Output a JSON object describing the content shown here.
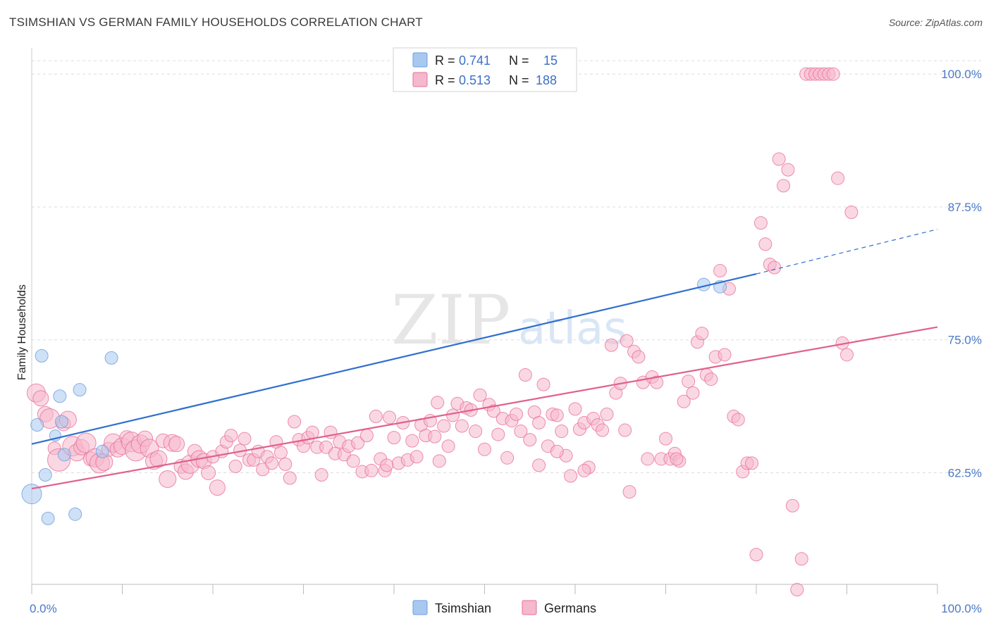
{
  "title": "TSIMSHIAN VS GERMAN FAMILY HOUSEHOLDS CORRELATION CHART",
  "source": "Source: ZipAtlas.com",
  "watermark": {
    "zip": "ZIP",
    "atlas": "atlas"
  },
  "legend": {
    "rows": [
      {
        "r_label": "R =",
        "r_value": "0.741",
        "n_label": "N =",
        "n_value": "15",
        "color": "#a8c8f0"
      },
      {
        "r_label": "R =",
        "r_value": "0.513",
        "n_label": "N =",
        "n_value": "188",
        "color": "#f5b8cc"
      }
    ]
  },
  "chart_data": {
    "type": "scatter",
    "title": "TSIMSHIAN VS GERMAN FAMILY HOUSEHOLDS CORRELATION CHART",
    "xlabel": "",
    "ylabel": "Family Households",
    "xlim": [
      0,
      100
    ],
    "ylim": [
      52,
      102
    ],
    "x_tick_labels": [
      "0.0%",
      "100.0%"
    ],
    "y_ticks": [
      62.5,
      75.0,
      87.5,
      100.0
    ],
    "y_tick_labels": [
      "62.5%",
      "75.0%",
      "87.5%",
      "100.0%"
    ],
    "series": [
      {
        "name": "Tsimshian",
        "color": "#6b9ee0",
        "fill": "#a8c8f0",
        "trend": {
          "x0": 0,
          "y0": 65.2,
          "x1": 80,
          "y1": 81.2,
          "dash_to_x": 100,
          "dash_to_y": 85.4
        },
        "points": [
          [
            0,
            60.5,
            14
          ],
          [
            0.6,
            67.0,
            9
          ],
          [
            1.1,
            73.5,
            9
          ],
          [
            1.5,
            62.3,
            9
          ],
          [
            1.8,
            58.2,
            9
          ],
          [
            2.6,
            66.0,
            8
          ],
          [
            3.1,
            69.7,
            9
          ],
          [
            3.3,
            67.3,
            9
          ],
          [
            3.6,
            64.2,
            9
          ],
          [
            4.8,
            58.6,
            9
          ],
          [
            5.3,
            70.3,
            9
          ],
          [
            8.8,
            73.3,
            9
          ],
          [
            74.2,
            80.2,
            9
          ],
          [
            76.0,
            80.0,
            9
          ],
          [
            7.8,
            64.5,
            9
          ]
        ]
      },
      {
        "name": "Germans",
        "color": "#e8709a",
        "fill": "#f5b8cc",
        "trend": {
          "x0": 0,
          "y0": 61.0,
          "x1": 100,
          "y1": 76.2
        },
        "points": [
          [
            0.5,
            70.0,
            13
          ],
          [
            1.0,
            69.5,
            11
          ],
          [
            1.5,
            68.0,
            11
          ],
          [
            2.0,
            67.6,
            14
          ],
          [
            2.5,
            64.8,
            9
          ],
          [
            3.0,
            63.7,
            16
          ],
          [
            3.5,
            67.1,
            10
          ],
          [
            4.0,
            67.5,
            12
          ],
          [
            4.5,
            65.0,
            14
          ],
          [
            5.0,
            64.4,
            12
          ],
          [
            5.5,
            64.9,
            11
          ],
          [
            6.0,
            65.3,
            14
          ],
          [
            6.5,
            63.8,
            10
          ],
          [
            7.0,
            63.9,
            13
          ],
          [
            7.5,
            63.4,
            14
          ],
          [
            8.0,
            63.5,
            12
          ],
          [
            8.5,
            64.7,
            10
          ],
          [
            9.0,
            65.3,
            13
          ],
          [
            9.5,
            64.7,
            11
          ],
          [
            10.0,
            65.0,
            12
          ],
          [
            10.5,
            65.8,
            10
          ],
          [
            11.0,
            65.4,
            14
          ],
          [
            11.5,
            64.6,
            15
          ],
          [
            12.0,
            65.2,
            13
          ],
          [
            12.5,
            65.7,
            11
          ],
          [
            13.0,
            64.8,
            13
          ],
          [
            13.5,
            63.6,
            12
          ],
          [
            14.0,
            63.8,
            12
          ],
          [
            14.5,
            65.5,
            10
          ],
          [
            15.0,
            61.9,
            12
          ],
          [
            15.5,
            65.3,
            12
          ],
          [
            16.0,
            65.2,
            11
          ],
          [
            16.5,
            63.1,
            10
          ],
          [
            17.0,
            62.6,
            11
          ],
          [
            17.5,
            63.3,
            13
          ],
          [
            18.0,
            64.5,
            10
          ],
          [
            18.5,
            63.8,
            12
          ],
          [
            19.0,
            63.6,
            11
          ],
          [
            19.5,
            62.5,
            10
          ],
          [
            20.0,
            64.0,
            9
          ],
          [
            20.5,
            61.1,
            11
          ],
          [
            21.0,
            64.5,
            9
          ],
          [
            21.5,
            65.4,
            9
          ],
          [
            22.0,
            66.0,
            9
          ],
          [
            22.5,
            63.1,
            9
          ],
          [
            23.0,
            64.6,
            9
          ],
          [
            23.5,
            65.7,
            9
          ],
          [
            24.0,
            63.7,
            9
          ],
          [
            24.5,
            63.7,
            9
          ],
          [
            25.0,
            64.5,
            9
          ],
          [
            25.5,
            62.8,
            9
          ],
          [
            26.0,
            64.0,
            9
          ],
          [
            26.5,
            63.4,
            9
          ],
          [
            27.0,
            65.4,
            9
          ],
          [
            27.5,
            64.4,
            9
          ],
          [
            28.0,
            63.3,
            9
          ],
          [
            28.5,
            62.0,
            9
          ],
          [
            29.0,
            67.3,
            9
          ],
          [
            29.5,
            65.6,
            9
          ],
          [
            30.0,
            65.0,
            9
          ],
          [
            30.5,
            65.8,
            9
          ],
          [
            31.0,
            66.3,
            9
          ],
          [
            31.5,
            64.9,
            9
          ],
          [
            32.0,
            62.3,
            9
          ],
          [
            32.5,
            64.9,
            9
          ],
          [
            33.0,
            66.3,
            9
          ],
          [
            33.5,
            64.3,
            9
          ],
          [
            34.0,
            65.4,
            9
          ],
          [
            34.5,
            64.2,
            9
          ],
          [
            35.0,
            65.0,
            9
          ],
          [
            35.5,
            63.6,
            9
          ],
          [
            36.0,
            65.3,
            9
          ],
          [
            36.5,
            62.6,
            9
          ],
          [
            37.0,
            66.0,
            9
          ],
          [
            37.5,
            62.7,
            9
          ],
          [
            38.0,
            67.8,
            9
          ],
          [
            38.5,
            63.8,
            9
          ],
          [
            39.0,
            62.7,
            9
          ],
          [
            39.5,
            67.7,
            9
          ],
          [
            40.0,
            65.8,
            9
          ],
          [
            40.5,
            63.4,
            9
          ],
          [
            41.0,
            67.2,
            9
          ],
          [
            41.5,
            63.7,
            9
          ],
          [
            42.0,
            65.5,
            9
          ],
          [
            42.5,
            64.0,
            9
          ],
          [
            43.0,
            67.0,
            9
          ],
          [
            43.5,
            66.0,
            9
          ],
          [
            44.0,
            67.4,
            9
          ],
          [
            44.5,
            65.9,
            9
          ],
          [
            45.0,
            63.6,
            9
          ],
          [
            45.5,
            66.9,
            9
          ],
          [
            46.0,
            65.0,
            9
          ],
          [
            46.5,
            67.9,
            9
          ],
          [
            47.0,
            69.0,
            9
          ],
          [
            47.5,
            66.9,
            9
          ],
          [
            48.0,
            68.6,
            9
          ],
          [
            48.5,
            68.4,
            9
          ],
          [
            49.0,
            66.4,
            9
          ],
          [
            49.5,
            69.8,
            9
          ],
          [
            50.0,
            64.7,
            9
          ],
          [
            50.5,
            68.9,
            9
          ],
          [
            51.0,
            68.3,
            9
          ],
          [
            51.5,
            66.1,
            9
          ],
          [
            52.0,
            67.6,
            9
          ],
          [
            52.5,
            63.9,
            9
          ],
          [
            53.0,
            67.4,
            9
          ],
          [
            53.5,
            68.0,
            9
          ],
          [
            54.0,
            66.4,
            9
          ],
          [
            54.5,
            71.7,
            9
          ],
          [
            55.0,
            65.6,
            9
          ],
          [
            55.5,
            68.2,
            9
          ],
          [
            56.0,
            67.2,
            9
          ],
          [
            56.5,
            70.8,
            9
          ],
          [
            57.0,
            65.0,
            9
          ],
          [
            57.5,
            68.0,
            9
          ],
          [
            58.0,
            67.9,
            9
          ],
          [
            58.5,
            66.4,
            9
          ],
          [
            59.0,
            64.1,
            9
          ],
          [
            59.5,
            62.2,
            9
          ],
          [
            60.0,
            68.5,
            9
          ],
          [
            60.5,
            66.6,
            9
          ],
          [
            61.0,
            67.2,
            9
          ],
          [
            61.5,
            63.0,
            9
          ],
          [
            62.0,
            67.6,
            9
          ],
          [
            62.5,
            67.0,
            9
          ],
          [
            63.0,
            66.5,
            9
          ],
          [
            63.5,
            68.0,
            9
          ],
          [
            64.0,
            74.5,
            9
          ],
          [
            64.5,
            70.0,
            9
          ],
          [
            65.0,
            70.9,
            9
          ],
          [
            65.5,
            66.5,
            9
          ],
          [
            66.0,
            60.7,
            9
          ],
          [
            66.5,
            73.9,
            9
          ],
          [
            67.0,
            73.4,
            9
          ],
          [
            67.5,
            71.0,
            9
          ],
          [
            68.0,
            63.8,
            9
          ],
          [
            68.5,
            71.5,
            9
          ],
          [
            69.0,
            71.0,
            9
          ],
          [
            69.5,
            63.8,
            9
          ],
          [
            70.0,
            65.7,
            9
          ],
          [
            70.5,
            63.8,
            9
          ],
          [
            71.0,
            64.3,
            9
          ],
          [
            71.5,
            63.6,
            9
          ],
          [
            72.0,
            69.2,
            9
          ],
          [
            72.5,
            71.1,
            9
          ],
          [
            73.0,
            70.0,
            9
          ],
          [
            73.5,
            74.8,
            9
          ],
          [
            74.0,
            75.6,
            9
          ],
          [
            74.5,
            71.7,
            9
          ],
          [
            75.0,
            71.3,
            9
          ],
          [
            75.5,
            73.4,
            9
          ],
          [
            76.0,
            81.5,
            9
          ],
          [
            76.5,
            73.6,
            9
          ],
          [
            77.0,
            79.8,
            9
          ],
          [
            77.5,
            67.8,
            9
          ],
          [
            78.0,
            67.5,
            9
          ],
          [
            78.5,
            62.6,
            9
          ],
          [
            79.0,
            63.4,
            9
          ],
          [
            79.5,
            63.4,
            9
          ],
          [
            80.0,
            54.8,
            9
          ],
          [
            80.5,
            86.0,
            9
          ],
          [
            81.0,
            84.0,
            9
          ],
          [
            81.5,
            82.1,
            9
          ],
          [
            82.0,
            81.8,
            9
          ],
          [
            82.5,
            92.0,
            9
          ],
          [
            83.0,
            89.5,
            9
          ],
          [
            83.5,
            91.0,
            9
          ],
          [
            84.0,
            59.4,
            9
          ],
          [
            84.5,
            51.5,
            9
          ],
          [
            85.0,
            54.4,
            9
          ],
          [
            85.5,
            100.0,
            9
          ],
          [
            86.0,
            100.0,
            9
          ],
          [
            86.5,
            100.0,
            9
          ],
          [
            87.0,
            100.0,
            9
          ],
          [
            87.5,
            100.0,
            9
          ],
          [
            88.0,
            100.0,
            9
          ],
          [
            88.5,
            100.0,
            9
          ],
          [
            89.0,
            90.2,
            9
          ],
          [
            89.5,
            74.7,
            9
          ],
          [
            90.0,
            73.6,
            9
          ],
          [
            90.5,
            87.0,
            9
          ],
          [
            65.7,
            74.9,
            9
          ],
          [
            61.0,
            62.7,
            9
          ],
          [
            71.2,
            63.8,
            9
          ],
          [
            58.0,
            64.5,
            9
          ],
          [
            56.0,
            63.2,
            9
          ],
          [
            44.8,
            69.1,
            9
          ],
          [
            39.2,
            63.2,
            9
          ]
        ]
      }
    ]
  }
}
